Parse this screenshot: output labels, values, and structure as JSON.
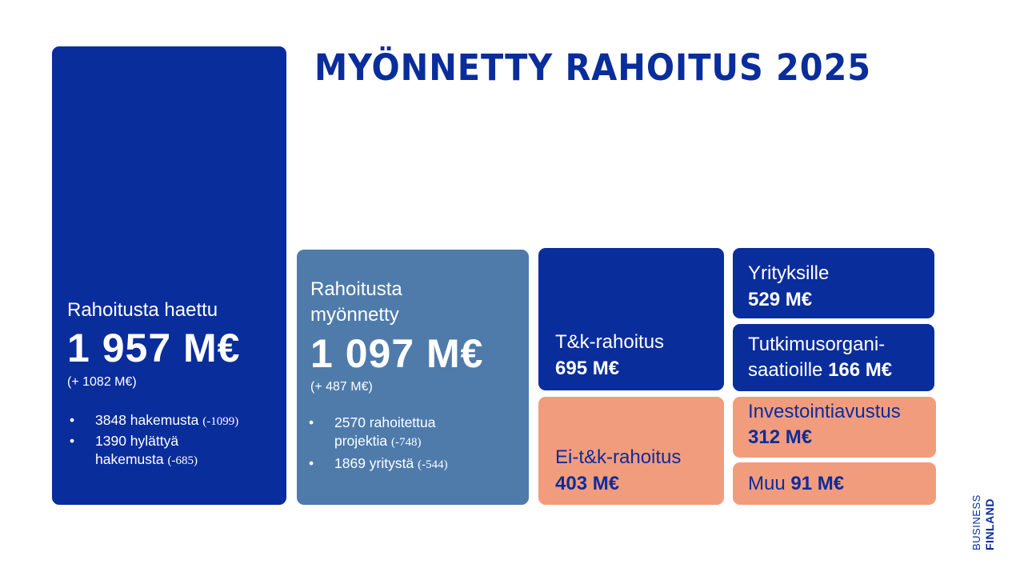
{
  "title": "MYÖNNETTY RAHOITUS 2025",
  "colors": {
    "navy": "#0a2d9c",
    "steel_blue": "#4f7bab",
    "salmon": "#f29c7e",
    "background": "#ffffff"
  },
  "applied": {
    "label": "Rahoitusta haettu",
    "value": "1 957 M€",
    "change": "(+ 1082 M€)",
    "bullets": [
      {
        "line1": "3848 hakemusta ",
        "delta": "(-1099)"
      },
      {
        "line1": "1390 hylättyä",
        "line2": "hakemusta ",
        "delta": "(-685)"
      }
    ]
  },
  "granted": {
    "label_line1": "Rahoitusta",
    "label_line2": "myönnetty",
    "value": "1 097 M€",
    "change": "(+ 487 M€)",
    "bullets": [
      {
        "line1": "2570 rahoitettua",
        "line2": "projektia ",
        "delta": "(-748)"
      },
      {
        "line1": "1869 yritystä ",
        "delta": "(-544)"
      }
    ]
  },
  "tk": {
    "label": "T&k-rahoitus",
    "value": "695 M€"
  },
  "eitk": {
    "label": "Ei-t&k-rahoitus",
    "value": "403 M€"
  },
  "yrityksille": {
    "label": "Yrityksille",
    "value": "529 M€"
  },
  "tutkimus": {
    "label_line1": "Tutkimusorgani-",
    "label_line2": "saatioille ",
    "value": "166 M€"
  },
  "investointi": {
    "label": "Investointiavustus",
    "value": "312 M€"
  },
  "muu": {
    "label": "Muu ",
    "value": "91 M€"
  },
  "logo": {
    "line1": "BUSINESS",
    "line2": "FINLAND"
  }
}
